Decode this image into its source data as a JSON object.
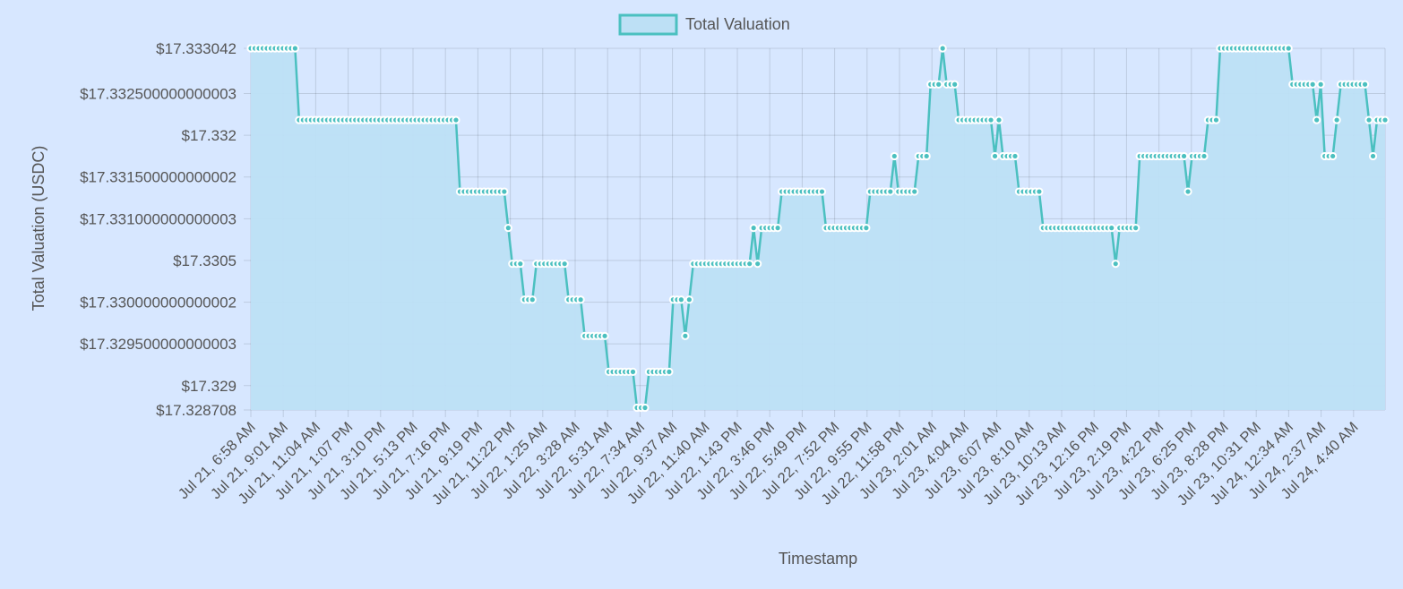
{
  "chart_data": {
    "type": "line",
    "title": "",
    "xlabel": "Timestamp",
    "ylabel": "Total Valuation (USDC)",
    "ylim": [
      17.328708,
      17.333042
    ],
    "y_ticks": [
      "$17.333042",
      "$17.332500000000003",
      "$17.332",
      "$17.331500000000002",
      "$17.331000000000003",
      "$17.3305",
      "$17.330000000000002",
      "$17.329500000000003",
      "$17.329",
      "$17.328708"
    ],
    "y_tick_values": [
      17.333042,
      17.3325,
      17.332,
      17.3315,
      17.331,
      17.3305,
      17.33,
      17.3295,
      17.329,
      17.328708
    ],
    "x_ticks": [
      "Jul 21, 6:58 AM",
      "Jul 21, 9:01 AM",
      "Jul 21, 11:04 AM",
      "Jul 21, 1:07 PM",
      "Jul 21, 3:10 PM",
      "Jul 21, 5:13 PM",
      "Jul 21, 7:16 PM",
      "Jul 21, 9:19 PM",
      "Jul 21, 11:22 PM",
      "Jul 22, 1:25 AM",
      "Jul 22, 3:28 AM",
      "Jul 22, 5:31 AM",
      "Jul 22, 7:34 AM",
      "Jul 22, 9:37 AM",
      "Jul 22, 11:40 AM",
      "Jul 22, 1:43 PM",
      "Jul 22, 3:46 PM",
      "Jul 22, 5:49 PM",
      "Jul 22, 7:52 PM",
      "Jul 22, 9:55 PM",
      "Jul 22, 11:58 PM",
      "Jul 23, 2:01 AM",
      "Jul 23, 4:04 AM",
      "Jul 23, 6:07 AM",
      "Jul 23, 8:10 AM",
      "Jul 23, 10:13 AM",
      "Jul 23, 12:16 PM",
      "Jul 23, 2:19 PM",
      "Jul 23, 4:22 PM",
      "Jul 23, 6:25 PM",
      "Jul 23, 8:28 PM",
      "Jul 23, 10:31 PM",
      "Jul 24, 12:34 AM",
      "Jul 24, 2:37 AM",
      "Jul 24, 4:40 AM"
    ],
    "grid": true,
    "legend": "top",
    "series": [
      {
        "name": "Total Valuation",
        "color": "#4bc0c0",
        "fill": "#bde0f5",
        "values": [
          17.333042,
          17.333042,
          17.333042,
          17.333042,
          17.333042,
          17.333042,
          17.333042,
          17.333042,
          17.333042,
          17.333042,
          17.333042,
          17.333042,
          17.332183,
          17.332183,
          17.332183,
          17.332183,
          17.332183,
          17.332183,
          17.332183,
          17.332183,
          17.332183,
          17.332183,
          17.332183,
          17.332183,
          17.332183,
          17.332183,
          17.332183,
          17.332183,
          17.332183,
          17.332183,
          17.332183,
          17.332183,
          17.332183,
          17.332183,
          17.332183,
          17.332183,
          17.332183,
          17.332183,
          17.332183,
          17.332183,
          17.332183,
          17.332183,
          17.332183,
          17.332183,
          17.332183,
          17.332183,
          17.332183,
          17.332183,
          17.332183,
          17.332183,
          17.332183,
          17.332183,
          17.331325,
          17.331325,
          17.331325,
          17.331325,
          17.331325,
          17.331325,
          17.331325,
          17.331325,
          17.331325,
          17.331325,
          17.331325,
          17.331325,
          17.33089,
          17.33046,
          17.33046,
          17.33046,
          17.33003,
          17.33003,
          17.33003,
          17.33046,
          17.33046,
          17.33046,
          17.33046,
          17.33046,
          17.33046,
          17.33046,
          17.33046,
          17.33003,
          17.33003,
          17.33003,
          17.33003,
          17.329595,
          17.329595,
          17.329595,
          17.329595,
          17.329595,
          17.329595,
          17.329165,
          17.329165,
          17.329165,
          17.329165,
          17.329165,
          17.329165,
          17.329165,
          17.328735,
          17.328735,
          17.328735,
          17.329165,
          17.329165,
          17.329165,
          17.329165,
          17.329165,
          17.329165,
          17.33003,
          17.33003,
          17.33003,
          17.329595,
          17.33003,
          17.33046,
          17.33046,
          17.33046,
          17.33046,
          17.33046,
          17.33046,
          17.33046,
          17.33046,
          17.33046,
          17.33046,
          17.33046,
          17.33046,
          17.33046,
          17.33046,
          17.33046,
          17.33089,
          17.33046,
          17.33089,
          17.33089,
          17.33089,
          17.33089,
          17.33089,
          17.331325,
          17.331325,
          17.331325,
          17.331325,
          17.331325,
          17.331325,
          17.331325,
          17.331325,
          17.331325,
          17.331325,
          17.331325,
          17.33089,
          17.33089,
          17.33089,
          17.33089,
          17.33089,
          17.33089,
          17.33089,
          17.33089,
          17.33089,
          17.33089,
          17.33089,
          17.331325,
          17.331325,
          17.331325,
          17.331325,
          17.331325,
          17.331325,
          17.33175,
          17.331325,
          17.331325,
          17.331325,
          17.331325,
          17.331325,
          17.33175,
          17.33175,
          17.33175,
          17.33261,
          17.33261,
          17.33261,
          17.333042,
          17.33261,
          17.33261,
          17.33261,
          17.332183,
          17.332183,
          17.332183,
          17.332183,
          17.332183,
          17.332183,
          17.332183,
          17.332183,
          17.332183,
          17.33175,
          17.332183,
          17.33175,
          17.33175,
          17.33175,
          17.33175,
          17.331325,
          17.331325,
          17.331325,
          17.331325,
          17.331325,
          17.331325,
          17.33089,
          17.33089,
          17.33089,
          17.33089,
          17.33089,
          17.33089,
          17.33089,
          17.33089,
          17.33089,
          17.33089,
          17.33089,
          17.33089,
          17.33089,
          17.33089,
          17.33089,
          17.33089,
          17.33089,
          17.33089,
          17.33046,
          17.33089,
          17.33089,
          17.33089,
          17.33089,
          17.33089,
          17.33175,
          17.33175,
          17.33175,
          17.33175,
          17.33175,
          17.33175,
          17.33175,
          17.33175,
          17.33175,
          17.33175,
          17.33175,
          17.33175,
          17.331325,
          17.33175,
          17.33175,
          17.33175,
          17.33175,
          17.332183,
          17.332183,
          17.332183,
          17.333042,
          17.333042,
          17.333042,
          17.333042,
          17.333042,
          17.333042,
          17.333042,
          17.333042,
          17.333042,
          17.333042,
          17.333042,
          17.333042,
          17.333042,
          17.333042,
          17.333042,
          17.333042,
          17.333042,
          17.333042,
          17.33261,
          17.33261,
          17.33261,
          17.33261,
          17.33261,
          17.33261,
          17.332183,
          17.33261,
          17.33175,
          17.33175,
          17.33175,
          17.332183,
          17.33261,
          17.33261,
          17.33261,
          17.33261,
          17.33261,
          17.33261,
          17.33261,
          17.332183,
          17.33175,
          17.332183,
          17.332183,
          17.332183
        ]
      }
    ]
  }
}
